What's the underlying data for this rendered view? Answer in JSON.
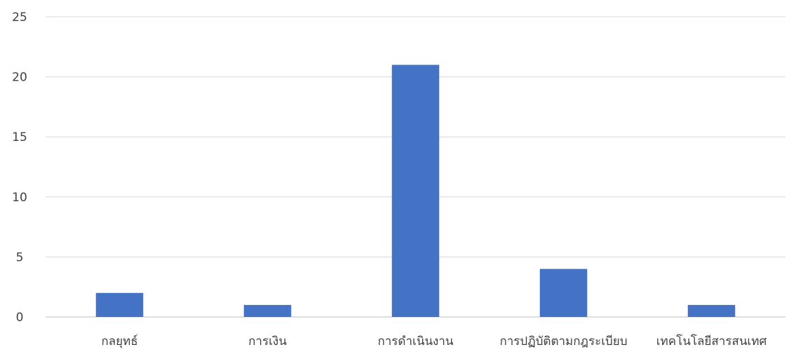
{
  "chart_data": {
    "type": "bar",
    "categories": [
      "กลยุทธ์",
      "การเงิน",
      "การดำเนินงาน",
      "การปฏิบัติตามกฎระเบียบ",
      "เทคโนโลยีสารสนเทศ"
    ],
    "values": [
      2,
      1,
      21,
      4,
      1
    ],
    "title": "",
    "xlabel": "",
    "ylabel": "",
    "ylim": [
      0,
      25
    ],
    "yticks": [
      0,
      5,
      10,
      15,
      20,
      25
    ],
    "grid": true,
    "legend": "none",
    "bar_color": "#4472c4"
  }
}
